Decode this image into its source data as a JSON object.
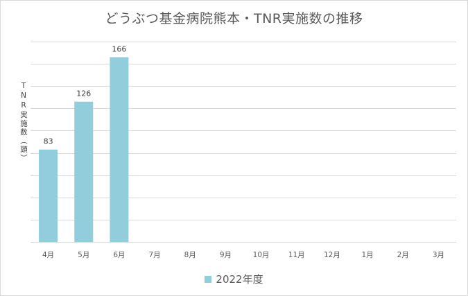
{
  "chart_data": {
    "type": "bar",
    "title": "どうぶつ基金病院熊本・TNR実施数の推移",
    "ylabel": "TNR実施数（頭）",
    "xlabel": "",
    "categories": [
      "4月",
      "5月",
      "6月",
      "7月",
      "8月",
      "9月",
      "10月",
      "11月",
      "12月",
      "1月",
      "2月",
      "3月"
    ],
    "series": [
      {
        "name": "2022年度",
        "values": [
          83,
          126,
          166,
          null,
          null,
          null,
          null,
          null,
          null,
          null,
          null,
          null
        ],
        "color": "#92cddc"
      }
    ],
    "data_labels": [
      "83",
      "126",
      "166"
    ],
    "ylim": [
      0,
      180
    ],
    "y_gridline_step": 20,
    "y_tick_labels_shown": false,
    "grid": true,
    "legend_position": "bottom"
  }
}
